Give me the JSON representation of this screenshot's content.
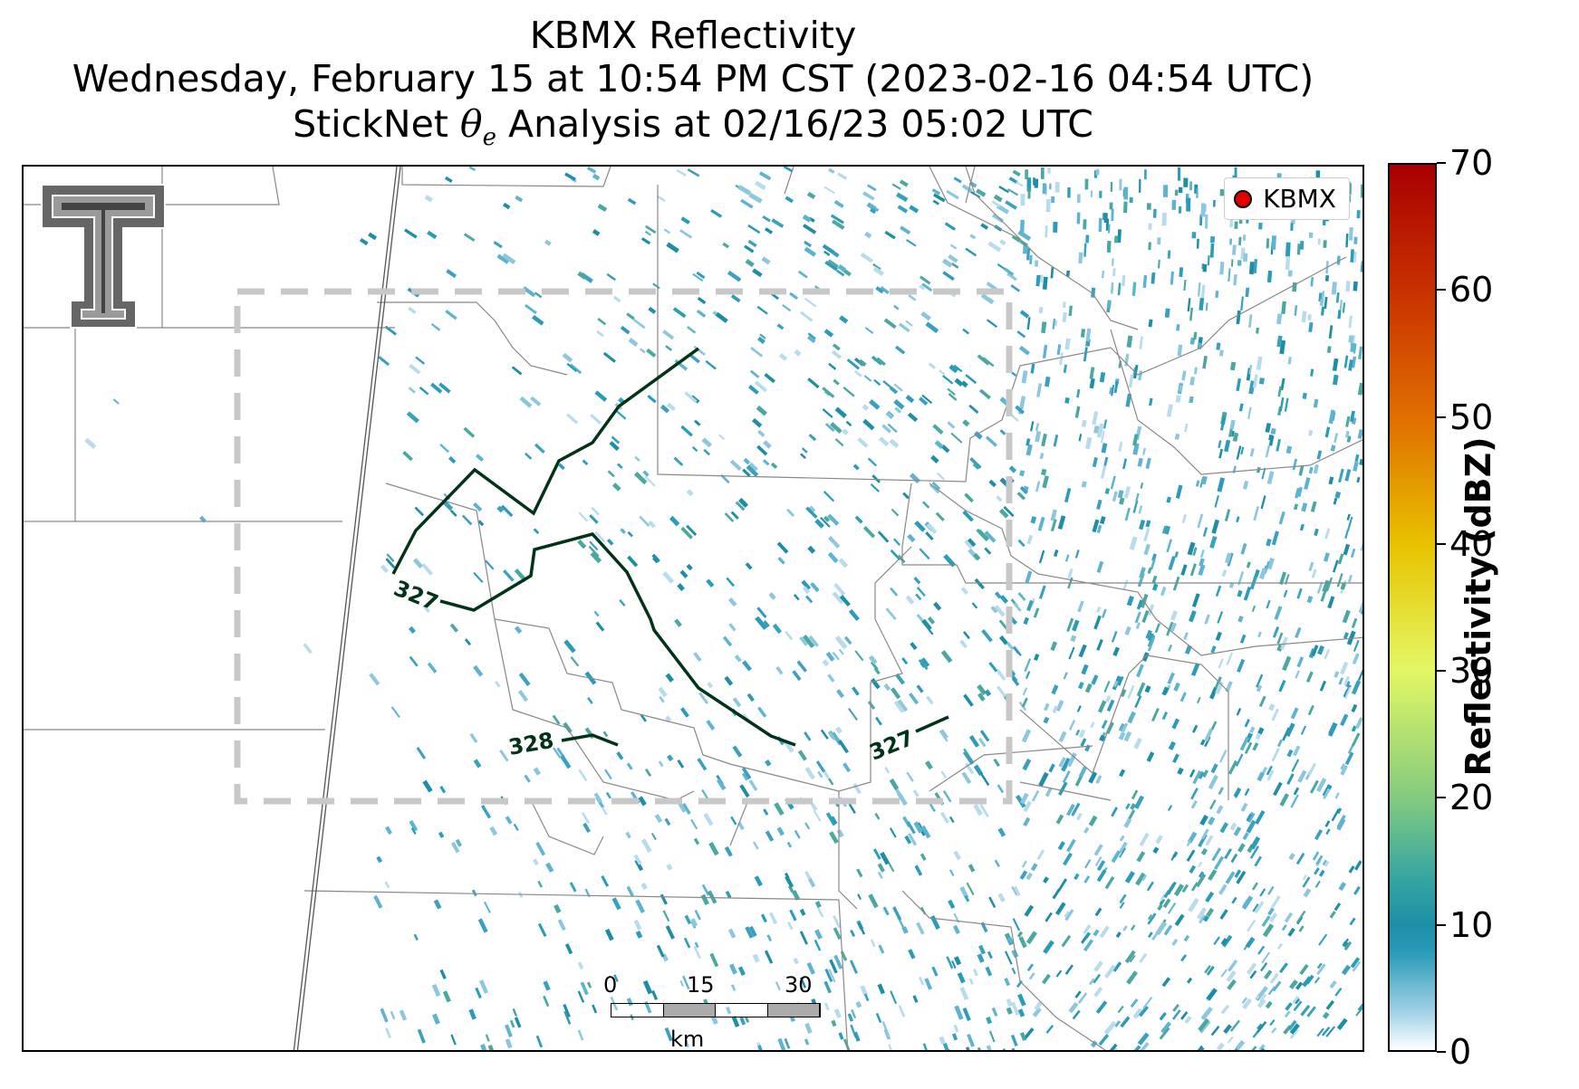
{
  "title": {
    "line1": "KBMX Reflectivity",
    "line2": "Wednesday, February 15 at 10:54 PM CST (2023-02-16 04:54 UTC)",
    "line3_prefix": "StickNet ",
    "line3_symbol": "θ",
    "line3_sub": "e",
    "line3_suffix": " Analysis at 02/16/23 05:02 UTC"
  },
  "legend": {
    "label": "KBMX",
    "marker_color": "#e00000"
  },
  "scale_bar": {
    "ticks": [
      "0",
      "15",
      "30"
    ],
    "unit": "km"
  },
  "colorbar": {
    "title": "Reflectivity (dBZ)",
    "min": 0,
    "max": 70,
    "ticks": [
      "0",
      "10",
      "20",
      "30",
      "40",
      "50",
      "60",
      "70"
    ],
    "colormap": [
      "#ffffff",
      "#2a9bb8",
      "#80c980",
      "#e3f765",
      "#e8c300",
      "#e07000",
      "#a80000"
    ]
  },
  "contours": {
    "color": "#003318",
    "labels": [
      "327",
      "328",
      "327"
    ]
  },
  "analysis_box": {
    "style": "dashed",
    "color": "#c8c8c8"
  },
  "logo": {
    "icon": "double-t-logo"
  }
}
